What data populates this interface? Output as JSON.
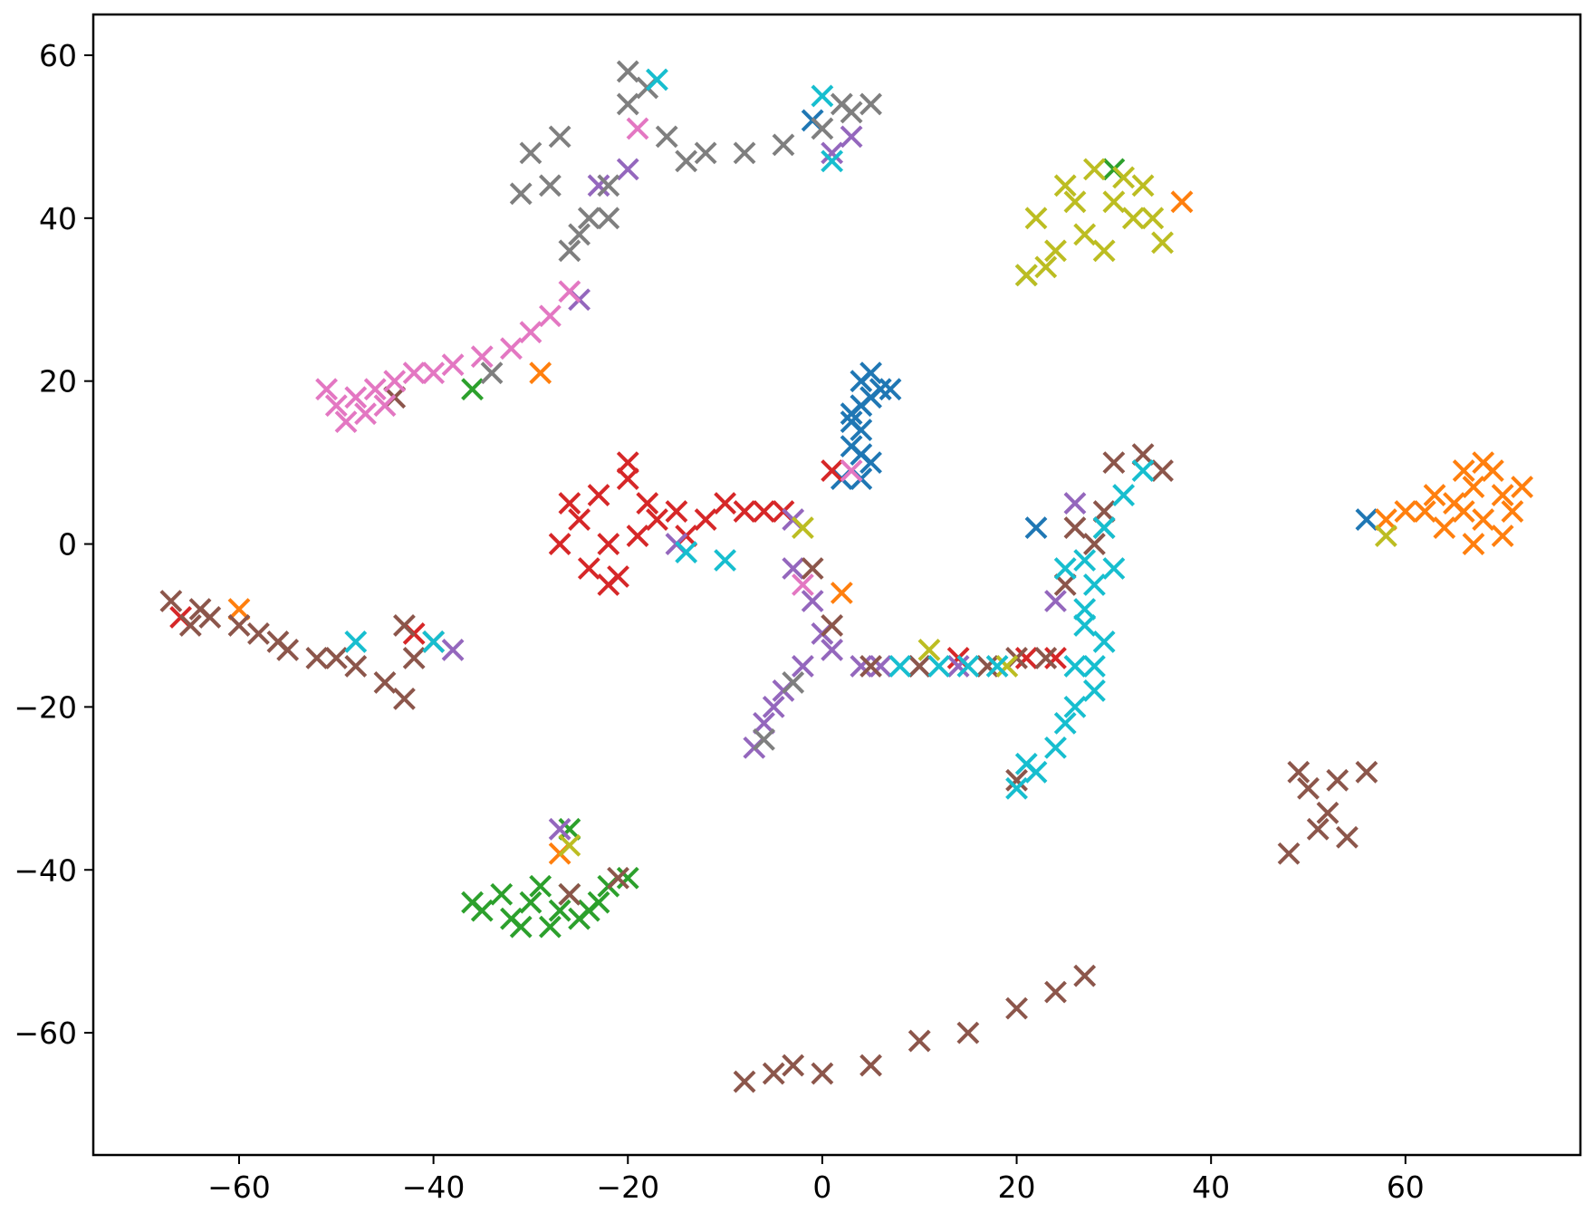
{
  "chart_data": {
    "type": "scatter",
    "title": "",
    "xlabel": "",
    "ylabel": "",
    "xlim": [
      -75,
      78
    ],
    "ylim": [
      -75,
      65
    ],
    "xticks": [
      -60,
      -40,
      -20,
      0,
      20,
      40,
      60
    ],
    "yticks": [
      -60,
      -40,
      -20,
      0,
      20,
      40,
      60
    ],
    "xtick_labels": [
      "−60",
      "−40",
      "−20",
      "0",
      "20",
      "40",
      "60"
    ],
    "ytick_labels": [
      "−60",
      "−40",
      "−20",
      "0",
      "20",
      "40",
      "60"
    ],
    "marker": "x",
    "grid": false,
    "legend": "none",
    "series": [
      {
        "color": "#1f77b4",
        "points": [
          [
            4,
            20
          ],
          [
            5,
            18
          ],
          [
            3,
            16
          ],
          [
            4,
            14
          ],
          [
            3,
            12
          ],
          [
            5,
            10
          ],
          [
            4,
            8
          ],
          [
            6,
            19
          ],
          [
            7,
            19
          ],
          [
            5,
            21
          ],
          [
            2,
            8
          ],
          [
            4,
            11
          ],
          [
            3,
            15
          ],
          [
            4,
            17
          ],
          [
            22,
            2
          ],
          [
            56,
            3
          ],
          [
            -1,
            52
          ]
        ]
      },
      {
        "color": "#ff7f0e",
        "points": [
          [
            65,
            5
          ],
          [
            67,
            7
          ],
          [
            68,
            3
          ],
          [
            70,
            6
          ],
          [
            66,
            9
          ],
          [
            69,
            9
          ],
          [
            71,
            4
          ],
          [
            64,
            2
          ],
          [
            67,
            0
          ],
          [
            70,
            1
          ],
          [
            63,
            6
          ],
          [
            68,
            10
          ],
          [
            72,
            7
          ],
          [
            62,
            4
          ],
          [
            66,
            4
          ],
          [
            60,
            4
          ],
          [
            58,
            3
          ],
          [
            -29,
            21
          ],
          [
            -27,
            -38
          ],
          [
            2,
            -6
          ],
          [
            37,
            42
          ],
          [
            -60,
            -8
          ]
        ]
      },
      {
        "color": "#2ca02c",
        "points": [
          [
            -35,
            -45
          ],
          [
            -32,
            -46
          ],
          [
            -30,
            -44
          ],
          [
            -28,
            -47
          ],
          [
            -26,
            -43
          ],
          [
            -24,
            -45
          ],
          [
            -22,
            -42
          ],
          [
            -20,
            -41
          ],
          [
            -33,
            -43
          ],
          [
            -29,
            -42
          ],
          [
            -25,
            -46
          ],
          [
            -36,
            -44
          ],
          [
            -27,
            -45
          ],
          [
            -31,
            -47
          ],
          [
            -23,
            -44
          ],
          [
            -26,
            -35
          ],
          [
            -36,
            19
          ],
          [
            21,
            33
          ],
          [
            30,
            46
          ]
        ]
      },
      {
        "color": "#d62728",
        "points": [
          [
            -25,
            3
          ],
          [
            -23,
            6
          ],
          [
            -20,
            8
          ],
          [
            -18,
            5
          ],
          [
            -22,
            0
          ],
          [
            -24,
            -3
          ],
          [
            -21,
            -4
          ],
          [
            -19,
            1
          ],
          [
            -27,
            0
          ],
          [
            -17,
            3
          ],
          [
            -15,
            4
          ],
          [
            -12,
            3
          ],
          [
            -10,
            5
          ],
          [
            -8,
            4
          ],
          [
            -26,
            5
          ],
          [
            -20,
            10
          ],
          [
            -22,
            -5
          ],
          [
            -14,
            1
          ],
          [
            -6,
            4
          ],
          [
            -4,
            4
          ],
          [
            24,
            -14
          ],
          [
            21,
            -14
          ],
          [
            14,
            -14
          ],
          [
            -42,
            -11
          ],
          [
            -66,
            -9
          ],
          [
            1,
            9
          ]
        ]
      },
      {
        "color": "#9467bd",
        "points": [
          [
            -3,
            -3
          ],
          [
            -1,
            -7
          ],
          [
            0,
            -11
          ],
          [
            -2,
            -15
          ],
          [
            -4,
            -18
          ],
          [
            -6,
            -22
          ],
          [
            -7,
            -25
          ],
          [
            -5,
            -20
          ],
          [
            1,
            -13
          ],
          [
            4,
            -15
          ],
          [
            6,
            -15
          ],
          [
            10,
            -15
          ],
          [
            14,
            -15
          ],
          [
            -23,
            44
          ],
          [
            -20,
            46
          ],
          [
            -25,
            30
          ],
          [
            -15,
            0
          ],
          [
            26,
            5
          ],
          [
            24,
            -7
          ],
          [
            -38,
            -13
          ],
          [
            1,
            48
          ],
          [
            3,
            50
          ],
          [
            -3,
            3
          ],
          [
            -27,
            -35
          ]
        ]
      },
      {
        "color": "#8c564b",
        "points": [
          [
            -67,
            -7
          ],
          [
            -64,
            -8
          ],
          [
            -60,
            -10
          ],
          [
            -56,
            -12
          ],
          [
            -52,
            -14
          ],
          [
            -48,
            -15
          ],
          [
            -45,
            -17
          ],
          [
            -43,
            -19
          ],
          [
            -42,
            -14
          ],
          [
            -43,
            -10
          ],
          [
            -65,
            -10
          ],
          [
            -58,
            -11
          ],
          [
            -50,
            -14
          ],
          [
            -55,
            -13
          ],
          [
            26,
            2
          ],
          [
            28,
            0
          ],
          [
            25,
            -5
          ],
          [
            30,
            10
          ],
          [
            33,
            11
          ],
          [
            35,
            9
          ],
          [
            29,
            4
          ],
          [
            5,
            -15
          ],
          [
            10,
            -15
          ],
          [
            17,
            -15
          ],
          [
            20,
            -14
          ],
          [
            23,
            -14
          ],
          [
            1,
            -10
          ],
          [
            -1,
            -3
          ],
          [
            -5,
            -65
          ],
          [
            0,
            -65
          ],
          [
            5,
            -64
          ],
          [
            10,
            -61
          ],
          [
            15,
            -60
          ],
          [
            20,
            -57
          ],
          [
            24,
            -55
          ],
          [
            27,
            -53
          ],
          [
            -8,
            -66
          ],
          [
            -3,
            -64
          ],
          [
            50,
            -30
          ],
          [
            53,
            -29
          ],
          [
            56,
            -28
          ],
          [
            52,
            -33
          ],
          [
            54,
            -36
          ],
          [
            48,
            -38
          ],
          [
            51,
            -35
          ],
          [
            49,
            -28
          ],
          [
            -26,
            -43
          ],
          [
            -21,
            -41
          ],
          [
            20,
            -29
          ],
          [
            -44,
            18
          ],
          [
            -40,
            -12
          ],
          [
            -63,
            -9
          ]
        ]
      },
      {
        "color": "#e377c2",
        "points": [
          [
            -50,
            17
          ],
          [
            -48,
            18
          ],
          [
            -46,
            19
          ],
          [
            -44,
            20
          ],
          [
            -42,
            21
          ],
          [
            -40,
            21
          ],
          [
            -38,
            22
          ],
          [
            -35,
            23
          ],
          [
            -32,
            24
          ],
          [
            -30,
            26
          ],
          [
            -28,
            28
          ],
          [
            -26,
            31
          ],
          [
            -49,
            15
          ],
          [
            -47,
            16
          ],
          [
            -51,
            19
          ],
          [
            -45,
            17
          ],
          [
            -19,
            51
          ],
          [
            -2,
            -5
          ],
          [
            3,
            9
          ]
        ]
      },
      {
        "color": "#7f7f7f",
        "points": [
          [
            -20,
            58
          ],
          [
            -18,
            56
          ],
          [
            -20,
            54
          ],
          [
            -16,
            50
          ],
          [
            -12,
            48
          ],
          [
            -8,
            48
          ],
          [
            -4,
            49
          ],
          [
            0,
            51
          ],
          [
            3,
            53
          ],
          [
            5,
            54
          ],
          [
            -24,
            40
          ],
          [
            -22,
            44
          ],
          [
            -26,
            36
          ],
          [
            -28,
            44
          ],
          [
            -30,
            48
          ],
          [
            -27,
            50
          ],
          [
            -31,
            43
          ],
          [
            -25,
            38
          ],
          [
            -14,
            47
          ],
          [
            2,
            54
          ],
          [
            -22,
            40
          ],
          [
            -34,
            21
          ],
          [
            -6,
            -24
          ],
          [
            -3,
            -17
          ],
          [
            29,
            2
          ]
        ]
      },
      {
        "color": "#bcbd22",
        "points": [
          [
            22,
            40
          ],
          [
            25,
            44
          ],
          [
            28,
            46
          ],
          [
            30,
            42
          ],
          [
            27,
            38
          ],
          [
            24,
            36
          ],
          [
            32,
            40
          ],
          [
            35,
            37
          ],
          [
            33,
            44
          ],
          [
            29,
            36
          ],
          [
            26,
            42
          ],
          [
            23,
            34
          ],
          [
            31,
            45
          ],
          [
            34,
            40
          ],
          [
            21,
            33
          ],
          [
            -2,
            2
          ],
          [
            11,
            -13
          ],
          [
            19,
            -15
          ],
          [
            58,
            1
          ],
          [
            -26,
            -37
          ]
        ]
      },
      {
        "color": "#17becf",
        "points": [
          [
            27,
            -10
          ],
          [
            28,
            -15
          ],
          [
            26,
            -20
          ],
          [
            24,
            -25
          ],
          [
            22,
            -28
          ],
          [
            20,
            -30
          ],
          [
            29,
            -12
          ],
          [
            28,
            -5
          ],
          [
            27,
            -2
          ],
          [
            29,
            2
          ],
          [
            31,
            6
          ],
          [
            33,
            9
          ],
          [
            25,
            -22
          ],
          [
            26,
            -15
          ],
          [
            21,
            -27
          ],
          [
            28,
            -18
          ],
          [
            27,
            -8
          ],
          [
            30,
            -3
          ],
          [
            -17,
            57
          ],
          [
            0,
            55
          ],
          [
            1,
            47
          ],
          [
            -48,
            -12
          ],
          [
            -40,
            -12
          ],
          [
            -14,
            -1
          ],
          [
            -10,
            -2
          ],
          [
            8,
            -15
          ],
          [
            12,
            -15
          ],
          [
            15,
            -15
          ],
          [
            18,
            -15
          ],
          [
            25,
            -3
          ]
        ]
      }
    ]
  }
}
